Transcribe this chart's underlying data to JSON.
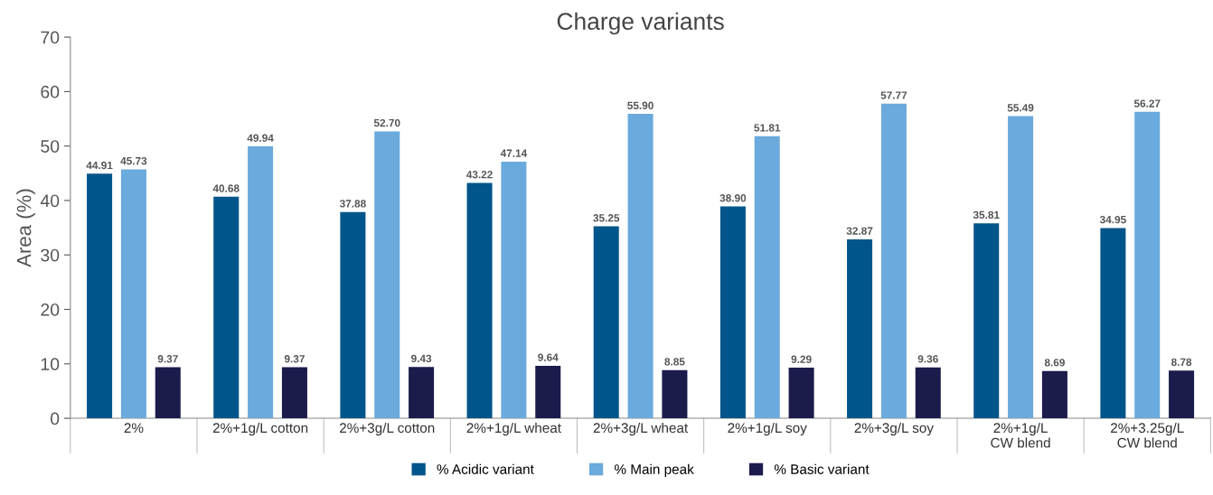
{
  "chart_data": {
    "type": "bar",
    "title": "Charge variants",
    "ylabel": "Area (%)",
    "categories": [
      "2%",
      "2%+1g/L cotton",
      "2%+3g/L cotton",
      "2%+1g/L wheat",
      "2%+3g/L wheat",
      "2%+1g/L soy",
      "2%+3g/L soy",
      "2%+1g/L\nCW blend",
      "2%+3.25g/L\nCW blend"
    ],
    "series": [
      {
        "name": "% Acidic variant",
        "color": "#00558a",
        "values": [
          44.91,
          40.68,
          37.88,
          43.22,
          35.25,
          38.9,
          32.87,
          35.81,
          34.95
        ],
        "value_labels": [
          "44.91",
          "40.68",
          "37.88",
          "43.22",
          "35.25",
          "38.90",
          "32.87",
          "35.81",
          "34.95"
        ]
      },
      {
        "name": "% Main peak",
        "color": "#6aaadd",
        "values": [
          45.73,
          49.94,
          52.7,
          47.14,
          55.9,
          51.81,
          57.77,
          55.49,
          56.27
        ],
        "value_labels": [
          "45.73",
          "49.94",
          "52.70",
          "47.14",
          "55.90",
          "51.81",
          "57.77",
          "55.49",
          "56.27"
        ]
      },
      {
        "name": "% Basic variant",
        "color": "#1b1c4c",
        "values": [
          9.37,
          9.37,
          9.43,
          9.64,
          8.85,
          9.29,
          9.36,
          8.69,
          8.78
        ],
        "value_labels": [
          "9.37",
          "9.37",
          "9.43",
          "9.64",
          "8.85",
          "9.29",
          "9.36",
          "8.69",
          "8.78"
        ]
      }
    ],
    "ylim": [
      0,
      70
    ],
    "yticks": [
      0,
      10,
      20,
      30,
      40,
      50,
      60,
      70
    ],
    "grid": false,
    "legend": "bottom"
  }
}
